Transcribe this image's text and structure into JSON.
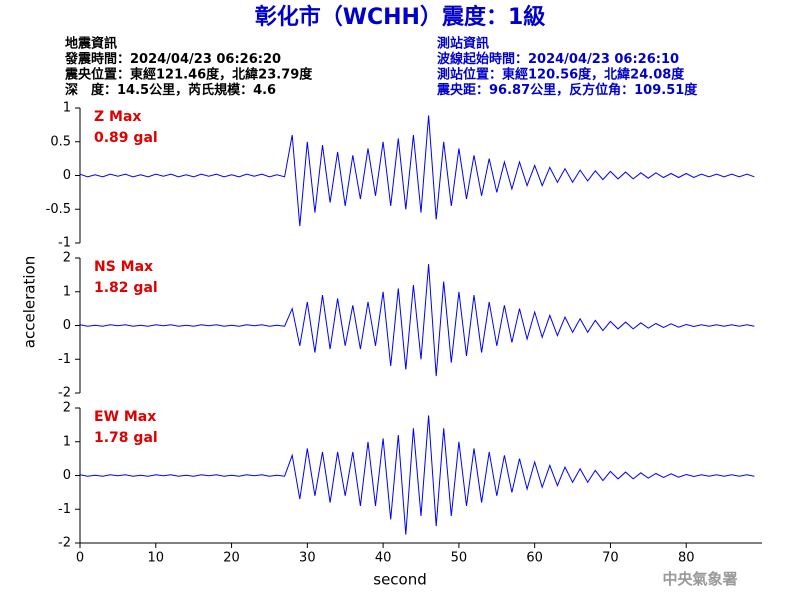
{
  "title": "彰化市（WCHH）震度：1級",
  "quake_info": [
    "地震資訊",
    "發震時間：2024/04/23 06:26:20",
    "震央位置：東經121.46度，北緯23.79度",
    "深　度：14.5公里，芮氏規模：4.6"
  ],
  "station_info": [
    "測站資訊",
    "波線起始時間：2024/04/23 06:26:10",
    "測站位置：東經120.56度，北緯24.08度",
    "震央距：96.87公里，反方位角：109.51度"
  ],
  "y_label": "acceleration",
  "x_label": "second",
  "footer": "中央氣象署",
  "chart_data": [
    {
      "type": "line",
      "annotations": [
        "Z Max",
        "0.89 gal"
      ],
      "color": "#0000ff",
      "xlim": [
        0,
        90
      ],
      "ylim": [
        -1,
        1
      ],
      "yticks": [
        -1,
        -0.5,
        0,
        0.5,
        1
      ],
      "x": [
        0,
        1,
        2,
        3,
        4,
        5,
        6,
        7,
        8,
        9,
        10,
        11,
        12,
        13,
        14,
        15,
        16,
        17,
        18,
        19,
        20,
        21,
        22,
        23,
        24,
        25,
        26,
        27,
        28,
        29,
        30,
        31,
        32,
        33,
        34,
        35,
        36,
        37,
        38,
        39,
        40,
        41,
        42,
        43,
        44,
        45,
        46,
        47,
        48,
        49,
        50,
        51,
        52,
        53,
        54,
        55,
        56,
        57,
        58,
        59,
        60,
        61,
        62,
        63,
        64,
        65,
        66,
        67,
        68,
        69,
        70,
        71,
        72,
        73,
        74,
        75,
        76,
        77,
        78,
        79,
        80,
        81,
        82,
        83,
        84,
        85,
        86,
        87,
        88,
        89
      ],
      "values": [
        0.02,
        -0.02,
        0.01,
        -0.02,
        0.02,
        -0.01,
        0.02,
        -0.02,
        0.01,
        -0.02,
        0.02,
        -0.01,
        0.02,
        -0.02,
        0.01,
        -0.02,
        0.02,
        -0.01,
        0.02,
        -0.02,
        0.01,
        -0.02,
        0.02,
        -0.01,
        0.02,
        -0.02,
        0.01,
        -0.02,
        0.6,
        -0.75,
        0.5,
        -0.55,
        0.45,
        -0.4,
        0.35,
        -0.45,
        0.3,
        -0.35,
        0.4,
        -0.3,
        0.5,
        -0.45,
        0.55,
        -0.5,
        0.6,
        -0.55,
        0.89,
        -0.65,
        0.5,
        -0.45,
        0.4,
        -0.35,
        0.3,
        -0.3,
        0.25,
        -0.25,
        0.2,
        -0.2,
        0.2,
        -0.15,
        0.15,
        -0.15,
        0.12,
        -0.1,
        0.1,
        -0.1,
        0.08,
        -0.08,
        0.07,
        -0.06,
        0.06,
        -0.05,
        0.05,
        -0.05,
        0.04,
        -0.04,
        0.04,
        -0.03,
        0.03,
        -0.03,
        0.03,
        -0.03,
        0.02,
        -0.02,
        0.02,
        -0.02,
        0.02,
        -0.02,
        0.02,
        -0.02
      ]
    },
    {
      "type": "line",
      "annotations": [
        "NS Max",
        "1.82 gal"
      ],
      "color": "#0000ff",
      "xlim": [
        0,
        90
      ],
      "ylim": [
        -2,
        2
      ],
      "yticks": [
        -2,
        -1,
        0,
        1,
        2
      ],
      "x": [
        0,
        1,
        2,
        3,
        4,
        5,
        6,
        7,
        8,
        9,
        10,
        11,
        12,
        13,
        14,
        15,
        16,
        17,
        18,
        19,
        20,
        21,
        22,
        23,
        24,
        25,
        26,
        27,
        28,
        29,
        30,
        31,
        32,
        33,
        34,
        35,
        36,
        37,
        38,
        39,
        40,
        41,
        42,
        43,
        44,
        45,
        46,
        47,
        48,
        49,
        50,
        51,
        52,
        53,
        54,
        55,
        56,
        57,
        58,
        59,
        60,
        61,
        62,
        63,
        64,
        65,
        66,
        67,
        68,
        69,
        70,
        71,
        72,
        73,
        74,
        75,
        76,
        77,
        78,
        79,
        80,
        81,
        82,
        83,
        84,
        85,
        86,
        87,
        88,
        89
      ],
      "values": [
        0.02,
        -0.02,
        0.01,
        -0.02,
        0.02,
        -0.01,
        0.02,
        -0.02,
        0.01,
        -0.02,
        0.02,
        -0.01,
        0.02,
        -0.02,
        0.01,
        -0.02,
        0.02,
        -0.01,
        0.02,
        -0.02,
        0.01,
        -0.02,
        0.02,
        -0.01,
        0.02,
        -0.02,
        0.01,
        -0.02,
        0.5,
        -0.6,
        0.7,
        -0.8,
        0.9,
        -0.7,
        0.8,
        -0.6,
        0.6,
        -0.7,
        0.7,
        -0.6,
        1.0,
        -1.2,
        1.1,
        -1.3,
        1.2,
        -1.0,
        1.82,
        -1.5,
        1.3,
        -1.1,
        1.0,
        -0.9,
        0.9,
        -0.8,
        0.7,
        -0.6,
        0.6,
        -0.5,
        0.5,
        -0.4,
        0.4,
        -0.35,
        0.3,
        -0.3,
        0.25,
        -0.2,
        0.2,
        -0.2,
        0.15,
        -0.15,
        0.12,
        -0.1,
        0.1,
        -0.1,
        0.08,
        -0.08,
        0.06,
        -0.06,
        0.05,
        -0.05,
        0.03,
        -0.03,
        0.02,
        -0.02,
        0.02,
        -0.02,
        0.02,
        -0.02,
        0.02,
        -0.02
      ]
    },
    {
      "type": "line",
      "annotations": [
        "EW Max",
        "1.78 gal"
      ],
      "color": "#0000ff",
      "xlim": [
        0,
        90
      ],
      "ylim": [
        -2,
        2
      ],
      "yticks": [
        -2,
        -1,
        0,
        1,
        2
      ],
      "xticks": [
        0,
        10,
        20,
        30,
        40,
        50,
        60,
        70,
        80
      ],
      "x": [
        0,
        1,
        2,
        3,
        4,
        5,
        6,
        7,
        8,
        9,
        10,
        11,
        12,
        13,
        14,
        15,
        16,
        17,
        18,
        19,
        20,
        21,
        22,
        23,
        24,
        25,
        26,
        27,
        28,
        29,
        30,
        31,
        32,
        33,
        34,
        35,
        36,
        37,
        38,
        39,
        40,
        41,
        42,
        43,
        44,
        45,
        46,
        47,
        48,
        49,
        50,
        51,
        52,
        53,
        54,
        55,
        56,
        57,
        58,
        59,
        60,
        61,
        62,
        63,
        64,
        65,
        66,
        67,
        68,
        69,
        70,
        71,
        72,
        73,
        74,
        75,
        76,
        77,
        78,
        79,
        80,
        81,
        82,
        83,
        84,
        85,
        86,
        87,
        88,
        89
      ],
      "values": [
        0.02,
        -0.02,
        0.01,
        -0.02,
        0.02,
        -0.01,
        0.02,
        -0.02,
        0.01,
        -0.02,
        0.02,
        -0.01,
        0.02,
        -0.02,
        0.01,
        -0.02,
        0.02,
        -0.01,
        0.02,
        -0.02,
        0.01,
        -0.02,
        0.02,
        -0.01,
        0.02,
        -0.02,
        0.01,
        -0.02,
        0.6,
        -0.7,
        0.8,
        -0.6,
        0.7,
        -0.8,
        0.7,
        -0.6,
        0.7,
        -0.9,
        1.0,
        -0.9,
        1.1,
        -1.3,
        1.2,
        -1.75,
        1.4,
        -1.2,
        1.78,
        -1.5,
        1.4,
        -1.2,
        1.0,
        -0.9,
        0.8,
        -0.8,
        0.7,
        -0.6,
        0.6,
        -0.5,
        0.5,
        -0.4,
        0.4,
        -0.35,
        0.3,
        -0.3,
        0.25,
        -0.2,
        0.2,
        -0.2,
        0.15,
        -0.15,
        0.12,
        -0.1,
        0.1,
        -0.1,
        0.08,
        -0.08,
        0.06,
        -0.06,
        0.05,
        -0.05,
        0.03,
        -0.03,
        0.02,
        -0.02,
        0.02,
        -0.02,
        0.02,
        -0.02,
        0.02,
        -0.02
      ]
    }
  ]
}
